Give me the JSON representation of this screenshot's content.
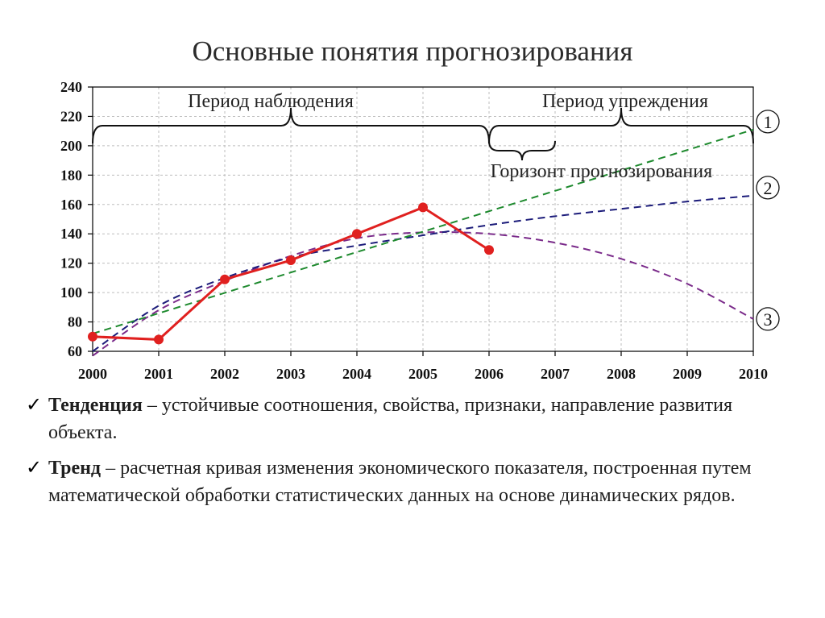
{
  "slide": {
    "title": "Основные понятия прогнозирования"
  },
  "chart_data": {
    "type": "line",
    "xlim": [
      2000,
      2010
    ],
    "ylim": [
      60,
      240
    ],
    "x_ticks": [
      "2000",
      "2001",
      "2002",
      "2003",
      "2004",
      "2005",
      "2006",
      "2007",
      "2008",
      "2009",
      "2010"
    ],
    "y_ticks": [
      "60",
      "80",
      "100",
      "120",
      "140",
      "160",
      "180",
      "200",
      "220",
      "240"
    ],
    "grid": true,
    "colors": {
      "actual": "#e0201f",
      "trend1": "#1e8a2e",
      "trend2": "#1c1c7a",
      "trend3": "#7a2a8a",
      "axis": "#000000",
      "grid": "#bdbdbd"
    },
    "series": [
      {
        "key": "actual",
        "x": [
          2000,
          2001,
          2002,
          2003,
          2004,
          2005,
          2006
        ],
        "y": [
          70,
          68,
          109,
          122,
          140,
          158,
          129
        ]
      },
      {
        "key": "trend1",
        "label": "1",
        "x": [
          2000,
          2010
        ],
        "y": [
          72,
          211
        ]
      },
      {
        "key": "trend2",
        "label": "2",
        "x": [
          2000,
          2001,
          2002,
          2003,
          2004,
          2005,
          2006,
          2007,
          2008,
          2009,
          2010
        ],
        "y": [
          60,
          91,
          110,
          124,
          132,
          139,
          146,
          152,
          157,
          162,
          166
        ]
      },
      {
        "key": "trend3",
        "label": "3",
        "x": [
          2000,
          2001,
          2002,
          2003,
          2004,
          2005,
          2006,
          2007,
          2008,
          2009,
          2010
        ],
        "y": [
          57,
          88,
          108,
          125,
          137,
          141,
          140,
          134,
          123,
          106,
          82
        ]
      }
    ],
    "annotations": {
      "observation": "Период наблюдения",
      "forecast": "Период упреждения",
      "horizon": "Горизонт прогнозирования"
    }
  },
  "bullets": [
    {
      "term": "Тенденция",
      "text": " – устойчивые соотношения, свойства, признаки, направление развития объекта."
    },
    {
      "term": "Тренд",
      "text": " – расчетная кривая изменения экономического показателя, построенная путем математической обработки статистических данных на основе динамических рядов."
    }
  ]
}
